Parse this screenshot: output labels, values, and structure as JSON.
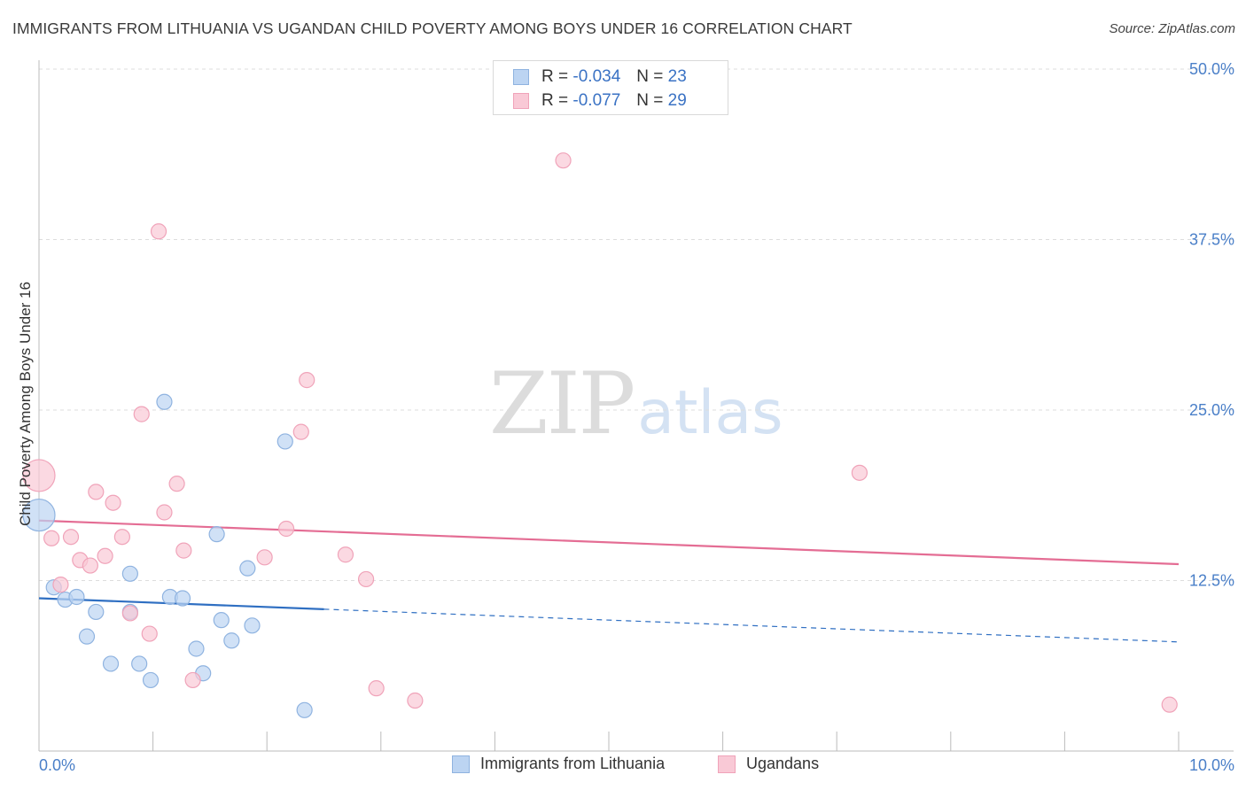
{
  "title": "IMMIGRANTS FROM LITHUANIA VS UGANDAN CHILD POVERTY AMONG BOYS UNDER 16 CORRELATION CHART",
  "source": "Source: ZipAtlas.com",
  "watermark": {
    "zip": "ZIP",
    "atlas": "atlas"
  },
  "legend": {
    "rows": [
      {
        "r_label": "R =",
        "r_value": "-0.034",
        "n_label": "N =",
        "n_value": "23"
      },
      {
        "r_label": "R =",
        "r_value": "-0.077",
        "n_label": "N =",
        "n_value": "29"
      }
    ]
  },
  "bottom_legend": [
    "Immigrants from Lithuania",
    "Ugandans"
  ],
  "colors": {
    "blue_fill": "#bcd4f2",
    "blue_stroke": "#8fb3e0",
    "blue_line": "#2f6fc2",
    "pink_fill": "#f9c9d6",
    "pink_stroke": "#f0a3b9",
    "pink_line": "#e46d94",
    "tick_text": "#4a7fc8",
    "grid": "#dddddd"
  },
  "chart_data": {
    "type": "scatter",
    "title": "IMMIGRANTS FROM LITHUANIA VS UGANDAN CHILD POVERTY AMONG BOYS UNDER 16 CORRELATION CHART",
    "xlabel": "",
    "ylabel": "Child Poverty Among Boys Under 16",
    "xlim": [
      0,
      10
    ],
    "ylim": [
      0,
      50
    ],
    "x_tick_labels": [
      "0.0%",
      "10.0%"
    ],
    "y_ticks": [
      12.5,
      25.0,
      37.5,
      50.0
    ],
    "y_tick_labels": [
      "12.5%",
      "25.0%",
      "37.5%",
      "50.0%"
    ],
    "grid": "horizontal dashed",
    "legend_position": "top-center",
    "series": [
      {
        "name": "Immigrants from Lithuania",
        "r": -0.034,
        "n": 23,
        "points": [
          {
            "x": 0.0,
            "y": 17.3,
            "size": "large"
          },
          {
            "x": 0.13,
            "y": 12.0
          },
          {
            "x": 0.23,
            "y": 11.1
          },
          {
            "x": 0.33,
            "y": 11.3
          },
          {
            "x": 0.42,
            "y": 8.4
          },
          {
            "x": 0.5,
            "y": 10.2
          },
          {
            "x": 0.63,
            "y": 6.4
          },
          {
            "x": 0.8,
            "y": 10.2
          },
          {
            "x": 0.8,
            "y": 13.0
          },
          {
            "x": 0.88,
            "y": 6.4
          },
          {
            "x": 0.98,
            "y": 5.2
          },
          {
            "x": 1.1,
            "y": 25.6
          },
          {
            "x": 1.15,
            "y": 11.3
          },
          {
            "x": 1.26,
            "y": 11.2
          },
          {
            "x": 1.38,
            "y": 7.5
          },
          {
            "x": 1.44,
            "y": 5.7
          },
          {
            "x": 1.56,
            "y": 15.9
          },
          {
            "x": 1.6,
            "y": 9.6
          },
          {
            "x": 1.69,
            "y": 8.1
          },
          {
            "x": 1.83,
            "y": 13.4
          },
          {
            "x": 1.87,
            "y": 9.2
          },
          {
            "x": 2.16,
            "y": 22.7
          },
          {
            "x": 2.33,
            "y": 3.0
          }
        ],
        "trend": {
          "x0": 0.0,
          "y0": 11.2,
          "x1": 10.0,
          "y1": 8.0,
          "solid_until_x": 2.5
        }
      },
      {
        "name": "Ugandans",
        "r": -0.077,
        "n": 29,
        "points": [
          {
            "x": 0.0,
            "y": 20.2,
            "size": "large"
          },
          {
            "x": 0.11,
            "y": 15.6
          },
          {
            "x": 0.19,
            "y": 12.2
          },
          {
            "x": 0.28,
            "y": 15.7
          },
          {
            "x": 0.36,
            "y": 14.0
          },
          {
            "x": 0.45,
            "y": 13.6
          },
          {
            "x": 0.5,
            "y": 19.0
          },
          {
            "x": 0.58,
            "y": 14.3
          },
          {
            "x": 0.65,
            "y": 18.2
          },
          {
            "x": 0.73,
            "y": 15.7
          },
          {
            "x": 0.8,
            "y": 10.1
          },
          {
            "x": 0.9,
            "y": 24.7
          },
          {
            "x": 0.97,
            "y": 8.6
          },
          {
            "x": 1.05,
            "y": 38.1
          },
          {
            "x": 1.1,
            "y": 17.5
          },
          {
            "x": 1.21,
            "y": 19.6
          },
          {
            "x": 1.27,
            "y": 14.7
          },
          {
            "x": 1.35,
            "y": 5.2
          },
          {
            "x": 1.98,
            "y": 14.2
          },
          {
            "x": 2.17,
            "y": 16.3
          },
          {
            "x": 2.3,
            "y": 23.4
          },
          {
            "x": 2.35,
            "y": 27.2
          },
          {
            "x": 2.69,
            "y": 14.4
          },
          {
            "x": 2.87,
            "y": 12.6
          },
          {
            "x": 2.96,
            "y": 4.6
          },
          {
            "x": 3.3,
            "y": 3.7
          },
          {
            "x": 4.6,
            "y": 43.3
          },
          {
            "x": 7.2,
            "y": 20.4
          },
          {
            "x": 9.92,
            "y": 3.4
          }
        ],
        "trend": {
          "x0": 0.0,
          "y0": 16.9,
          "x1": 10.0,
          "y1": 13.7
        }
      }
    ]
  }
}
